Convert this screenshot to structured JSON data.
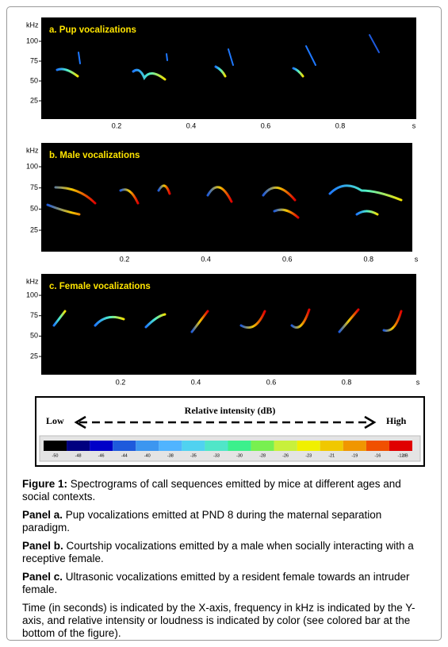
{
  "figure": {
    "panels": [
      {
        "title": "a. Pup vocalizations",
        "y_unit": "kHz",
        "x_unit": "s",
        "yticks": [
          25,
          50,
          75,
          100
        ],
        "xticks": [
          0.2,
          0.4,
          0.6,
          0.8
        ]
      },
      {
        "title": "b. Male vocalizations",
        "y_unit": "kHz",
        "x_unit": "s",
        "yticks": [
          25,
          50,
          75,
          100
        ],
        "xticks": [
          0.2,
          0.4,
          0.6,
          0.8
        ]
      },
      {
        "title": "c. Female vocalizations",
        "y_unit": "kHz",
        "x_unit": "s",
        "yticks": [
          25,
          50,
          75,
          100
        ],
        "xticks": [
          0.2,
          0.4,
          0.6,
          0.8
        ]
      }
    ],
    "legend": {
      "low": "Low",
      "title": "Relative intensity (dB)",
      "high": "High",
      "scale_labels": [
        "-50",
        "-48",
        "-46",
        "-44",
        "-40",
        "-38",
        "-35",
        "-33",
        "-30",
        "-28",
        "-26",
        "-23",
        "-21",
        "-19",
        "-16",
        "-12",
        "dB"
      ]
    }
  },
  "caption": [
    {
      "bold": "Figure 1:",
      "text": "Spectrograms of call sequences emitted by mice at different ages and social contexts."
    },
    {
      "bold": "Panel a.",
      "text": "Pup vocalizations emitted at PND 8 during the maternal separation paradigm."
    },
    {
      "bold": "Panel b.",
      "text": "Courtship vocalizations emitted by a male when socially interacting with a receptive female."
    },
    {
      "bold": "Panel c.",
      "text": "Ultrasonic vocalizations emitted by a resident female towards an intruder female."
    },
    {
      "bold": "",
      "text": "Time (in seconds) is indicated by the X-axis, frequency in kHz is indicated by the Y-axis, and relative intensity or loudness is indicated by color (see colored bar at the bottom of the figure)."
    }
  ]
}
